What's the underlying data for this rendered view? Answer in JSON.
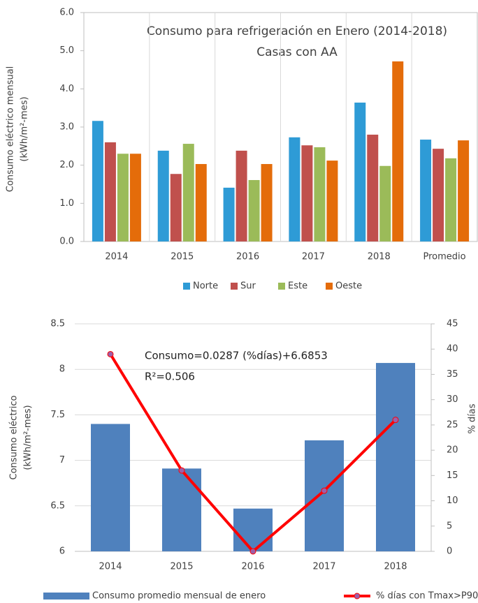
{
  "chart_data": [
    {
      "type": "bar",
      "title": "Consumo para refrigeración en Enero (2014-2018)",
      "subtitle": "Casas con AA",
      "ylabel": [
        "Consumo eléctrico mensual",
        "(kWh/m²-mes)"
      ],
      "categories": [
        "2014",
        "2015",
        "2016",
        "2017",
        "2018",
        "Promedio"
      ],
      "series": [
        {
          "name": "Norte",
          "color": "#2e9bd6",
          "values": [
            3.16,
            2.38,
            1.41,
            2.73,
            3.64,
            2.67
          ]
        },
        {
          "name": "Sur",
          "color": "#c0504d",
          "values": [
            2.6,
            1.77,
            2.38,
            2.52,
            2.8,
            2.43
          ]
        },
        {
          "name": "Este",
          "color": "#9bbb59",
          "values": [
            2.3,
            2.56,
            1.61,
            2.47,
            1.98,
            2.18
          ]
        },
        {
          "name": "Oeste",
          "color": "#e46c0a",
          "values": [
            2.3,
            2.03,
            2.03,
            2.12,
            4.72,
            2.65
          ]
        }
      ],
      "ylim": [
        0,
        6
      ],
      "yticks": [
        {
          "value": 0,
          "label": "0.0"
        },
        {
          "value": 1,
          "label": "1.0"
        },
        {
          "value": 2,
          "label": "2.0"
        },
        {
          "value": 3,
          "label": "3.0"
        },
        {
          "value": 4,
          "label": "4.0"
        },
        {
          "value": 5,
          "label": "5.0"
        },
        {
          "value": 6,
          "label": "6.0"
        }
      ],
      "grid": false,
      "legend": "bottom"
    },
    {
      "type": "combo",
      "annotations": [
        "Consumo=0.0287 (%días)+6.6853",
        "R²=0.506"
      ],
      "ylabel": [
        "Consumo eléctrico",
        "(kWh/m²-mes)"
      ],
      "y2label": "% días",
      "categories": [
        "2014",
        "2015",
        "2016",
        "2017",
        "2018"
      ],
      "series": [
        {
          "name": "Consumo promedio mensual de enero",
          "type": "bar",
          "color": "#4f81bd",
          "values": [
            7.4,
            6.91,
            6.47,
            7.22,
            8.07
          ]
        },
        {
          "name": "% días con Tmax>P90",
          "type": "line",
          "axis": "y2",
          "color": "#ff0000",
          "marker_color": "#9e5fa8",
          "values": [
            39,
            16,
            0,
            12,
            26
          ]
        }
      ],
      "ylim": [
        6,
        8.5
      ],
      "yticks": [
        6,
        6.5,
        7,
        7.5,
        8,
        8.5
      ],
      "y2lim": [
        0,
        45
      ],
      "y2ticks": [
        0,
        5,
        10,
        15,
        20,
        25,
        30,
        35,
        40,
        45
      ],
      "grid": true,
      "legend": "bottom"
    }
  ]
}
